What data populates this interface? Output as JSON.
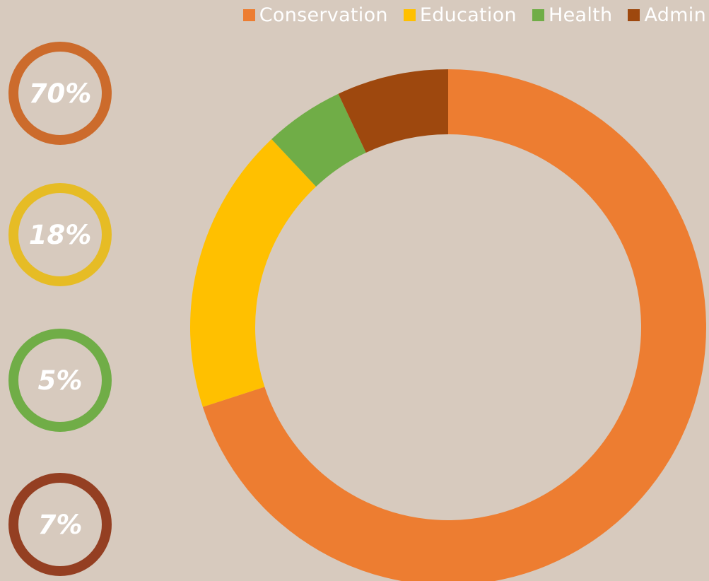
{
  "chart_data": {
    "type": "pie",
    "donut": true,
    "categories": [
      "Conservation",
      "Education",
      "Health",
      "Admin"
    ],
    "values": [
      70,
      18,
      5,
      7
    ],
    "colors": [
      "#ed7d31",
      "#ffc000",
      "#70ad47",
      "#9e480e"
    ],
    "legend_placement": "top-right",
    "title": ""
  },
  "badges": [
    {
      "label": "70%",
      "color": "#cc6b2c"
    },
    {
      "label": "18%",
      "color": "#e6bc25"
    },
    {
      "label": "5%",
      "color": "#70ad47"
    },
    {
      "label": "7%",
      "color": "#943f22"
    }
  ]
}
